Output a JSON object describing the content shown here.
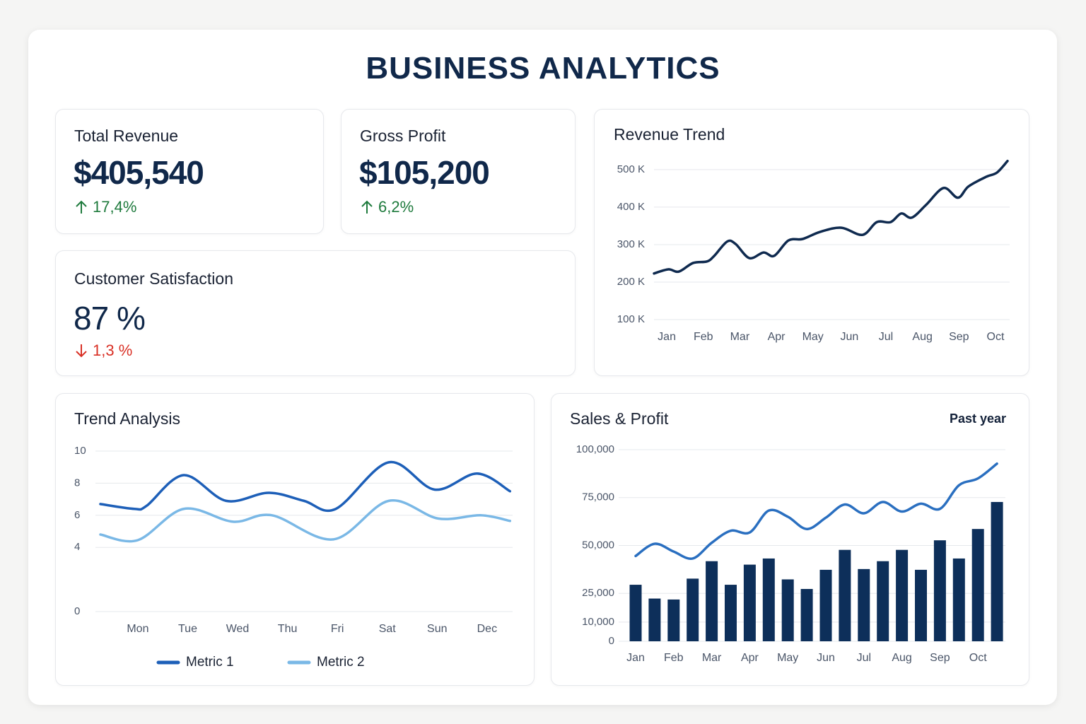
{
  "header": {
    "title": "BUSINESS ANALYTICS"
  },
  "kpis": [
    {
      "label": "Total Revenue",
      "value": "$405,540",
      "change": "17,4%",
      "trend": "up"
    },
    {
      "label": "Gross Profit",
      "value": "$105,200",
      "change": "6,2%",
      "trend": "up"
    },
    {
      "label": "Customer Satisfaction",
      "value": "87 %",
      "change": "1,3 %",
      "trend": "down"
    }
  ],
  "chart_data": [
    {
      "type": "line",
      "title": "Revenue Trend",
      "color": "#0f2a4f",
      "grid": true,
      "x": [
        -0.35,
        0.04,
        0.33,
        0.72,
        1.1,
        1.3,
        1.65,
        1.88,
        2.26,
        2.65,
        2.94,
        3.33,
        3.72,
        4.2,
        4.78,
        5.36,
        5.75,
        6.13,
        6.42,
        6.71,
        7.1,
        7.58,
        7.97,
        8.26,
        8.75,
        9.04,
        9.33
      ],
      "values": [
        223,
        234,
        228,
        251,
        255,
        270,
        308,
        302,
        264,
        279,
        270,
        311,
        315,
        334,
        345,
        326,
        360,
        360,
        383,
        372,
        406,
        451,
        425,
        455,
        481,
        492,
        523
      ],
      "xlim": [
        -0.35,
        9.33
      ],
      "xticks": [
        {
          "value": 0,
          "label": "Jan"
        },
        {
          "value": 1,
          "label": "Feb"
        },
        {
          "value": 2,
          "label": "Mar"
        },
        {
          "value": 3,
          "label": "Apr"
        },
        {
          "value": 4,
          "label": "May"
        },
        {
          "value": 5,
          "label": "Jun"
        },
        {
          "value": 6,
          "label": "Jul"
        },
        {
          "value": 7,
          "label": "Aug"
        },
        {
          "value": 8,
          "label": "Sep"
        },
        {
          "value": 9,
          "label": "Oct"
        }
      ],
      "ylim": [
        100,
        530
      ],
      "yticks": [
        {
          "value": 100,
          "label": "100 K"
        },
        {
          "value": 200,
          "label": "200 K"
        },
        {
          "value": 300,
          "label": "300 K"
        },
        {
          "value": 400,
          "label": "400 K"
        },
        {
          "value": 500,
          "label": "500 K"
        }
      ]
    },
    {
      "type": "line",
      "title": "Trend Analysis",
      "grid": true,
      "legend": "bottom",
      "series": [
        {
          "name": "Metric 1",
          "color": "#1d5fb8",
          "x": [
            -0.75,
            -0.07,
            0.18,
            0.92,
            1.77,
            2.62,
            3.33,
            3.97,
            5.03,
            5.95,
            6.8,
            7.46
          ],
          "values": [
            6.7,
            6.4,
            6.6,
            8.5,
            6.9,
            7.4,
            6.9,
            6.4,
            9.3,
            7.6,
            8.6,
            7.5
          ]
        },
        {
          "name": "Metric 2",
          "color": "#7ab8e6",
          "x": [
            -0.75,
            0,
            0.92,
            1.91,
            2.69,
            3.92,
            5.03,
            6.02,
            6.87,
            7.46
          ],
          "values": [
            4.8,
            4.45,
            6.4,
            5.6,
            6.0,
            4.5,
            6.9,
            5.8,
            6.0,
            5.65
          ]
        }
      ],
      "xlim": [
        -0.75,
        7.47
      ],
      "xticks": [
        {
          "value": 0,
          "label": "Mon"
        },
        {
          "value": 1,
          "label": "Tue"
        },
        {
          "value": 2,
          "label": "Wed"
        },
        {
          "value": 3,
          "label": "Thu"
        },
        {
          "value": 4,
          "label": "Fri"
        },
        {
          "value": 5,
          "label": "Sat"
        },
        {
          "value": 6,
          "label": "Sun"
        },
        {
          "value": 7,
          "label": "Dec"
        }
      ],
      "ylim": [
        0,
        10
      ],
      "yticks": [
        0,
        4,
        6,
        8,
        10
      ]
    },
    {
      "type": "bar",
      "title": "Sales & Profit",
      "subtitle": "Past year",
      "grid": true,
      "categories": [
        "Jan",
        null,
        "Feb",
        null,
        "Mar",
        null,
        "Apr",
        null,
        "May",
        null,
        "Jun",
        null,
        "Jul",
        null,
        "Aug",
        null,
        "Sep",
        null,
        "Oct",
        null
      ],
      "series": [
        {
          "color": "#0d2f5a",
          "values": [
            29500,
            22300,
            21800,
            32700,
            41800,
            29500,
            40000,
            43200,
            32300,
            27300,
            37300,
            47700,
            37700,
            41800,
            47700,
            37300,
            52700,
            43200,
            58600,
            72700
          ]
        },
        {
          "type": "line",
          "color": "#2a6fc0",
          "values": [
            44500,
            50900,
            46800,
            43200,
            51400,
            57700,
            56800,
            68200,
            65000,
            58600,
            64500,
            71400,
            66800,
            72700,
            67700,
            71800,
            69100,
            81400,
            85000,
            92700
          ]
        }
      ],
      "ylim": [
        0,
        100000
      ],
      "yticks": [
        0,
        {
          "value": 10000,
          "label": "10,000"
        },
        {
          "value": 25000,
          "label": "25,000"
        },
        {
          "value": 50000,
          "label": "50,000"
        },
        {
          "value": 75000,
          "label": "75,000"
        },
        {
          "value": 100000,
          "label": "100,000"
        }
      ]
    }
  ]
}
